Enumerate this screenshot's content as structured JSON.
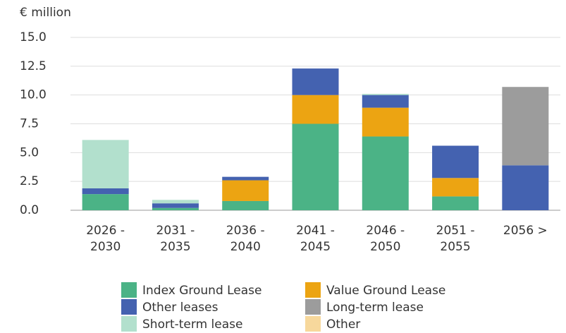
{
  "chart_data": {
    "type": "stacked_bar",
    "y_label": "€ million",
    "categories": [
      "2026 - 2030",
      "2031 - 2035",
      "2036 - 2040",
      "2041 - 2045",
      "2046 - 2050",
      "2051 - 2055",
      "2056 >"
    ],
    "series": [
      {
        "name": "Index Ground Lease",
        "color": "#4bb386",
        "values": [
          1.4,
          0.2,
          0.8,
          7.5,
          6.4,
          1.2,
          0
        ]
      },
      {
        "name": "Value Ground Lease",
        "color": "#eca412",
        "values": [
          0,
          0,
          1.8,
          2.5,
          2.5,
          1.6,
          0
        ]
      },
      {
        "name": "Other leases",
        "color": "#4462b0",
        "values": [
          0.5,
          0.4,
          0.3,
          2.3,
          1.1,
          2.8,
          3.9
        ]
      },
      {
        "name": "Long-term lease",
        "color": "#9c9c9c",
        "values": [
          0,
          0,
          0,
          0,
          0,
          0,
          6.8
        ]
      },
      {
        "name": "Short-term lease",
        "color": "#b2e0cd",
        "values": [
          4.2,
          0.3,
          0,
          0,
          0.1,
          0,
          0
        ]
      },
      {
        "name": "Other",
        "color": "#f7d89c",
        "values": [
          0,
          0,
          0,
          0,
          0,
          0,
          0
        ]
      }
    ],
    "ylim": [
      0,
      15
    ],
    "yticks": [
      {
        "value": 0,
        "label": "0.0"
      },
      2.5,
      {
        "value": 5,
        "label": "5.0"
      },
      7.5,
      {
        "value": 10,
        "label": "10.0"
      },
      12.5,
      {
        "value": 15,
        "label": "15.0"
      }
    ],
    "grid": true
  }
}
